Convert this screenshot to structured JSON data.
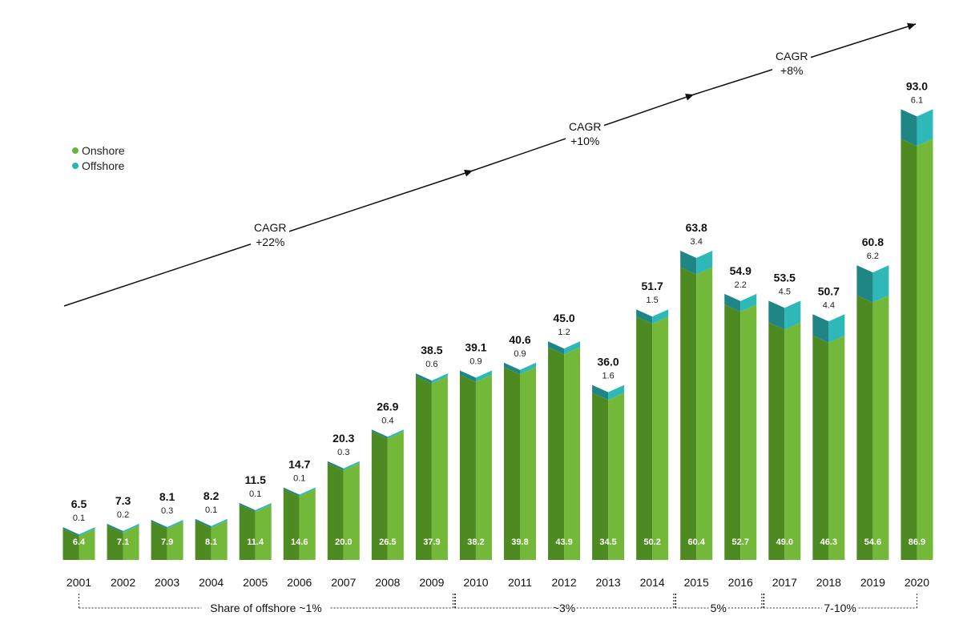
{
  "chart_data": {
    "type": "bar",
    "stacked": true,
    "categories": [
      "2001",
      "2002",
      "2003",
      "2004",
      "2005",
      "2006",
      "2007",
      "2008",
      "2009",
      "2010",
      "2011",
      "2012",
      "2013",
      "2014",
      "2015",
      "2016",
      "2017",
      "2018",
      "2019",
      "2020"
    ],
    "series": [
      {
        "name": "Onshore",
        "color": "#6db33f",
        "values": [
          6.4,
          7.1,
          7.9,
          8.1,
          11.4,
          14.6,
          20.0,
          26.5,
          37.9,
          38.2,
          39.8,
          43.9,
          34.5,
          50.2,
          60.4,
          52.7,
          49.0,
          46.3,
          54.6,
          86.9
        ],
        "labels": [
          "6.4",
          "7.1",
          "7.9",
          "8.1",
          "11.4",
          "14.6",
          "20.0",
          "26.5",
          "37.9",
          "38.2",
          "39.8",
          "43.9",
          "34.5",
          "50.2",
          "60.4",
          "52.7",
          "49.0",
          "46.3",
          "54.6",
          "86.9"
        ]
      },
      {
        "name": "Offshore",
        "color": "#2ab3b3",
        "values": [
          0.1,
          0.2,
          0.3,
          0.1,
          0.1,
          0.1,
          0.3,
          0.4,
          0.6,
          0.9,
          0.9,
          1.2,
          1.6,
          1.5,
          3.4,
          2.2,
          4.5,
          4.4,
          6.2,
          6.1
        ],
        "labels": [
          "0.1",
          "0.2",
          "0.3",
          "0.1",
          "0.1",
          "0.1",
          "0.3",
          "0.4",
          "0.6",
          "0.9",
          "0.9",
          "1.2",
          "1.6",
          "1.5",
          "3.4",
          "2.2",
          "4.5",
          "4.4",
          "6.2",
          "6.1"
        ]
      }
    ],
    "totals": [
      "6.5",
      "7.3",
      "8.1",
      "8.2",
      "11.5",
      "14.7",
      "20.3",
      "26.9",
      "38.5",
      "39.1",
      "40.6",
      "45.0",
      "36.0",
      "51.7",
      "63.8",
      "54.9",
      "53.5",
      "50.7",
      "60.8",
      "93.0"
    ],
    "ylim": [
      0,
      100
    ],
    "legend_position": "left",
    "annotations": {
      "cagr": [
        {
          "line1": "CAGR",
          "line2": "+22%"
        },
        {
          "line1": "CAGR",
          "line2": "+10%"
        },
        {
          "line1": "CAGR",
          "line2": "+8%"
        }
      ],
      "share_brackets": [
        {
          "label": "Share of offshore ~1%",
          "from": "2001",
          "to": "2009"
        },
        {
          "label": "~3%",
          "from": "2010",
          "to": "2014"
        },
        {
          "label": "5%",
          "from": "2015",
          "to": "2016"
        },
        {
          "label": "7-10%",
          "from": "2017",
          "to": "2020"
        }
      ]
    }
  },
  "colors": {
    "onshore_light": "#74b83a",
    "onshore_dark": "#4e8a22",
    "offshore_light": "#2fb8b8",
    "offshore_dark": "#1f8585",
    "text": "#111111"
  }
}
